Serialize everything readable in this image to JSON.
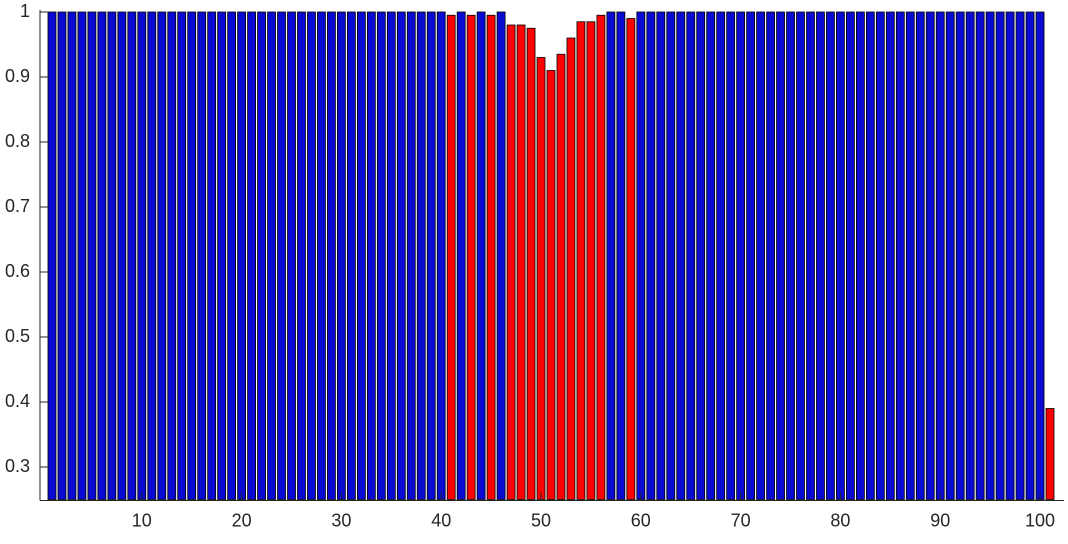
{
  "chart_data": {
    "type": "bar",
    "x": [
      1,
      2,
      3,
      4,
      5,
      6,
      7,
      8,
      9,
      10,
      11,
      12,
      13,
      14,
      15,
      16,
      17,
      18,
      19,
      20,
      21,
      22,
      23,
      24,
      25,
      26,
      27,
      28,
      29,
      30,
      31,
      32,
      33,
      34,
      35,
      36,
      37,
      38,
      39,
      40,
      41,
      42,
      43,
      44,
      45,
      46,
      47,
      48,
      49,
      50,
      51,
      52,
      53,
      54,
      55,
      56,
      57,
      58,
      59,
      60,
      61,
      62,
      63,
      64,
      65,
      66,
      67,
      68,
      69,
      70,
      71,
      72,
      73,
      74,
      75,
      76,
      77,
      78,
      79,
      80,
      81,
      82,
      83,
      84,
      85,
      86,
      87,
      88,
      89,
      90,
      91,
      92,
      93,
      94,
      95,
      96,
      97,
      98,
      99,
      100,
      101
    ],
    "values": [
      1,
      1,
      1,
      1,
      1,
      1,
      1,
      1,
      1,
      1,
      1,
      1,
      1,
      1,
      1,
      1,
      1,
      1,
      1,
      1,
      1,
      1,
      1,
      1,
      1,
      1,
      1,
      1,
      1,
      1,
      1,
      1,
      1,
      1,
      1,
      1,
      1,
      1,
      1,
      1,
      0.995,
      1,
      0.995,
      1,
      0.995,
      1,
      0.98,
      0.98,
      0.975,
      0.93,
      0.91,
      0.935,
      0.96,
      0.985,
      0.985,
      0.995,
      1,
      1,
      0.99,
      1,
      1,
      1,
      1,
      1,
      1,
      1,
      1,
      1,
      1,
      1,
      1,
      1,
      1,
      1,
      1,
      1,
      1,
      1,
      1,
      1,
      1,
      1,
      1,
      1,
      1,
      1,
      1,
      1,
      1,
      1,
      1,
      1,
      1,
      1,
      1,
      1,
      1,
      1,
      1,
      1,
      0.39
    ],
    "colors": [
      "#0a0ad2",
      "#0a0ad2",
      "#0a0ad2",
      "#0a0ad2",
      "#0a0ad2",
      "#0a0ad2",
      "#0a0ad2",
      "#0a0ad2",
      "#0a0ad2",
      "#0a0ad2",
      "#0a0ad2",
      "#0a0ad2",
      "#0a0ad2",
      "#0a0ad2",
      "#0a0ad2",
      "#0a0ad2",
      "#0a0ad2",
      "#0a0ad2",
      "#0a0ad2",
      "#0a0ad2",
      "#0a0ad2",
      "#0a0ad2",
      "#0a0ad2",
      "#0a0ad2",
      "#0a0ad2",
      "#0a0ad2",
      "#0a0ad2",
      "#0a0ad2",
      "#0a0ad2",
      "#0a0ad2",
      "#0a0ad2",
      "#0a0ad2",
      "#0a0ad2",
      "#0a0ad2",
      "#0a0ad2",
      "#0a0ad2",
      "#0a0ad2",
      "#0a0ad2",
      "#0a0ad2",
      "#0a0ad2",
      "#ff0000",
      "#0a0ad2",
      "#ff0000",
      "#0a0ad2",
      "#ff0000",
      "#0a0ad2",
      "#ff0000",
      "#ff0000",
      "#ff0000",
      "#ff0000",
      "#ff0000",
      "#ff0000",
      "#ff0000",
      "#ff0000",
      "#ff0000",
      "#ff0000",
      "#0a0ad2",
      "#0a0ad2",
      "#ff0000",
      "#0a0ad2",
      "#0a0ad2",
      "#0a0ad2",
      "#0a0ad2",
      "#0a0ad2",
      "#0a0ad2",
      "#0a0ad2",
      "#0a0ad2",
      "#0a0ad2",
      "#0a0ad2",
      "#0a0ad2",
      "#0a0ad2",
      "#0a0ad2",
      "#0a0ad2",
      "#0a0ad2",
      "#0a0ad2",
      "#0a0ad2",
      "#0a0ad2",
      "#0a0ad2",
      "#0a0ad2",
      "#0a0ad2",
      "#0a0ad2",
      "#0a0ad2",
      "#0a0ad2",
      "#0a0ad2",
      "#0a0ad2",
      "#0a0ad2",
      "#0a0ad2",
      "#0a0ad2",
      "#0a0ad2",
      "#0a0ad2",
      "#0a0ad2",
      "#0a0ad2",
      "#0a0ad2",
      "#0a0ad2",
      "#0a0ad2",
      "#0a0ad2",
      "#0a0ad2",
      "#0a0ad2",
      "#0a0ad2",
      "#0a0ad2",
      "#ff0000"
    ],
    "xlim": [
      0,
      102
    ],
    "ylim": [
      0.25,
      1
    ],
    "xticks": [
      10,
      20,
      30,
      40,
      50,
      60,
      70,
      80,
      90,
      100
    ],
    "yticks": [
      0.3,
      0.4,
      0.5,
      0.6,
      0.7,
      0.8,
      0.9,
      1
    ]
  }
}
